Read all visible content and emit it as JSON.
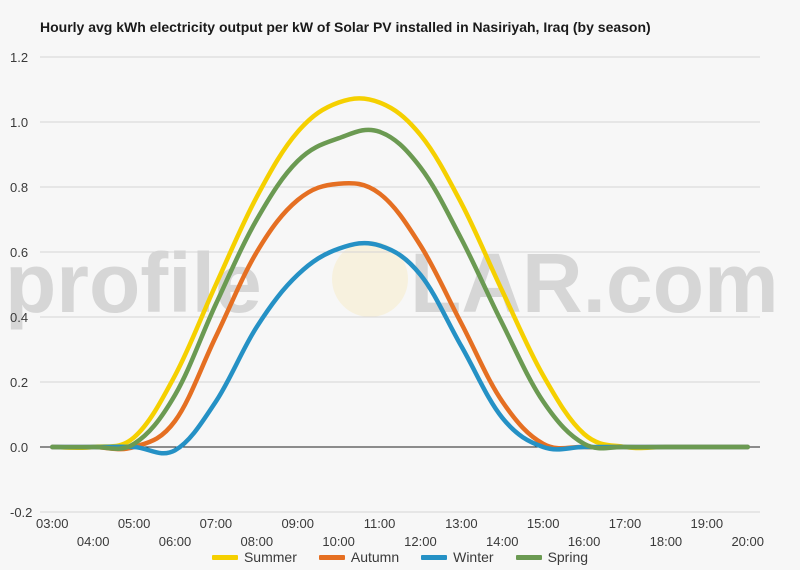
{
  "chart_data": {
    "type": "line",
    "title": "Hourly avg kWh electricity output per kW of Solar PV installed in Nasiriyah, Iraq (by season)",
    "xlabel": "",
    "ylabel": "",
    "ylim": [
      -0.2,
      1.2
    ],
    "yticks": [
      "1.2",
      "1.0",
      "0.8",
      "0.6",
      "0.4",
      "0.2",
      "0.0",
      "-0.2"
    ],
    "ytick_values": [
      1.2,
      1.0,
      0.8,
      0.6,
      0.4,
      0.2,
      0.0,
      -0.2
    ],
    "xticks": [
      "03:00",
      "04:00",
      "05:00",
      "06:00",
      "07:00",
      "08:00",
      "09:00",
      "10:00",
      "11:00",
      "12:00",
      "13:00",
      "14:00",
      "15:00",
      "16:00",
      "17:00",
      "18:00",
      "19:00",
      "20:00"
    ],
    "x": [
      3,
      4,
      5,
      6,
      7,
      8,
      9,
      10,
      11,
      12,
      13,
      14,
      15,
      16,
      17,
      18,
      19,
      20
    ],
    "grid": true,
    "legend_position": "bottom",
    "watermark": "profileSOLAR.com",
    "series": [
      {
        "name": "Summer",
        "color": "#f5d000",
        "values": [
          0,
          0,
          0.03,
          0.22,
          0.5,
          0.77,
          0.97,
          1.06,
          1.06,
          0.96,
          0.75,
          0.48,
          0.22,
          0.04,
          0.0,
          0,
          0,
          0
        ]
      },
      {
        "name": "Autumn",
        "color": "#e56f22",
        "values": [
          0,
          0,
          0,
          0.08,
          0.34,
          0.6,
          0.76,
          0.81,
          0.78,
          0.62,
          0.38,
          0.14,
          0.01,
          0,
          0,
          0,
          0,
          0
        ]
      },
      {
        "name": "Winter",
        "color": "#2591c5",
        "values": [
          0,
          0,
          0,
          -0.01,
          0.14,
          0.37,
          0.53,
          0.61,
          0.62,
          0.53,
          0.31,
          0.09,
          0.0,
          0,
          0,
          0,
          0,
          0
        ]
      },
      {
        "name": "Spring",
        "color": "#6b9a52",
        "values": [
          0,
          0,
          0.01,
          0.16,
          0.44,
          0.7,
          0.88,
          0.95,
          0.97,
          0.86,
          0.64,
          0.38,
          0.14,
          0.01,
          0,
          0,
          0,
          0
        ]
      }
    ]
  }
}
